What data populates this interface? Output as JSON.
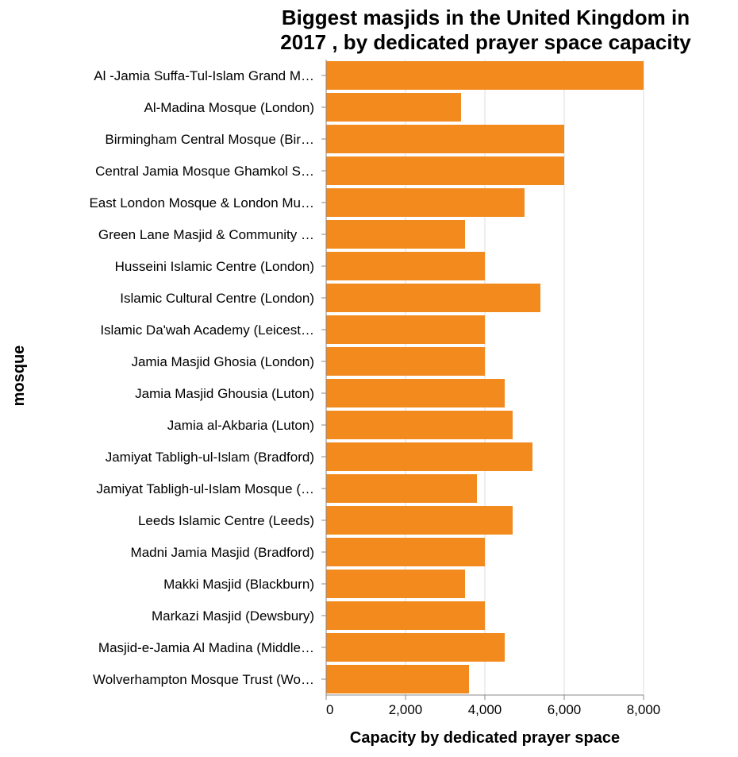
{
  "chart_data": {
    "type": "bar",
    "orientation": "horizontal",
    "title": [
      "Biggest masjids in the United Kingdom in",
      "2017 , by dedicated prayer space capacity"
    ],
    "xlabel": "Capacity by dedicated prayer space",
    "ylabel": "mosque",
    "xlim": [
      0,
      8000
    ],
    "xticks": [
      0,
      2000,
      4000,
      6000,
      8000
    ],
    "xtick_labels": [
      "0",
      "2,000",
      "4,000",
      "6,000",
      "8,000"
    ],
    "grid": "vertical",
    "bar_color": "#f28a1e",
    "categories": [
      "Al -Jamia Suffa-Tul-Islam Grand M…",
      "Al-Madina Mosque (London)",
      "Birmingham Central Mosque (Bir…",
      "Central Jamia Mosque Ghamkol S…",
      "East London Mosque & London Mu…",
      "Green Lane Masjid & Community …",
      "Husseini Islamic Centre  (London)",
      "Islamic Cultural Centre (London)",
      "Islamic Da'wah Academy  (Leicest…",
      "Jamia Masjid Ghosia  (London)",
      "Jamia Masjid Ghousia (Luton)",
      "Jamia al-Akbaria (Luton)",
      "Jamiyat Tabligh-ul-Islam (Bradford)",
      "Jamiyat Tabligh-ul-Islam Mosque (…",
      "Leeds Islamic Centre (Leeds)",
      "Madni Jamia Masjid  (Bradford)",
      "Makki Masjid (Blackburn)",
      "Markazi Masjid  (Dewsbury)",
      "Masjid-e-Jamia Al Madina (Middle…",
      "Wolverhampton Mosque Trust (Wo…"
    ],
    "values": [
      8000,
      3400,
      6000,
      6000,
      5000,
      3500,
      4000,
      5400,
      4000,
      4000,
      4500,
      4700,
      5200,
      3800,
      4700,
      4000,
      3500,
      4000,
      4500,
      3600
    ]
  }
}
